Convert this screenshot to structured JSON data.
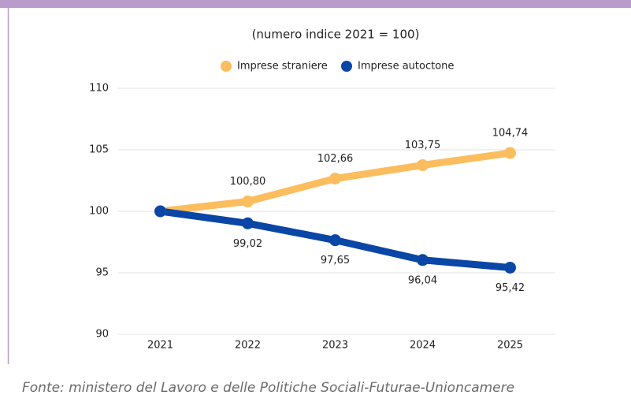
{
  "chart_data": {
    "type": "line",
    "subtitle": "(numero indice 2021 = 100)",
    "categories": [
      "2021",
      "2022",
      "2023",
      "2024",
      "2025"
    ],
    "series": [
      {
        "name": "Imprese straniere",
        "color": "#fcbd5e",
        "values": [
          100,
          100.8,
          102.66,
          103.75,
          104.74
        ],
        "value_labels": [
          null,
          "100,80",
          "102,66",
          "103,75",
          "104,74"
        ]
      },
      {
        "name": "Imprese autoctone",
        "color": "#0a46a6",
        "values": [
          100,
          99.02,
          97.65,
          96.04,
          95.42
        ],
        "value_labels": [
          null,
          "99,02",
          "97,65",
          "96,04",
          "95,42"
        ]
      }
    ],
    "ylim": [
      90,
      110
    ],
    "yticks": [
      90,
      95,
      100,
      105,
      110
    ],
    "grid": true,
    "legend": "top",
    "source": "Fonte: ministero del Lavoro e delle Politiche Sociali-Futurae-Unioncamere"
  }
}
